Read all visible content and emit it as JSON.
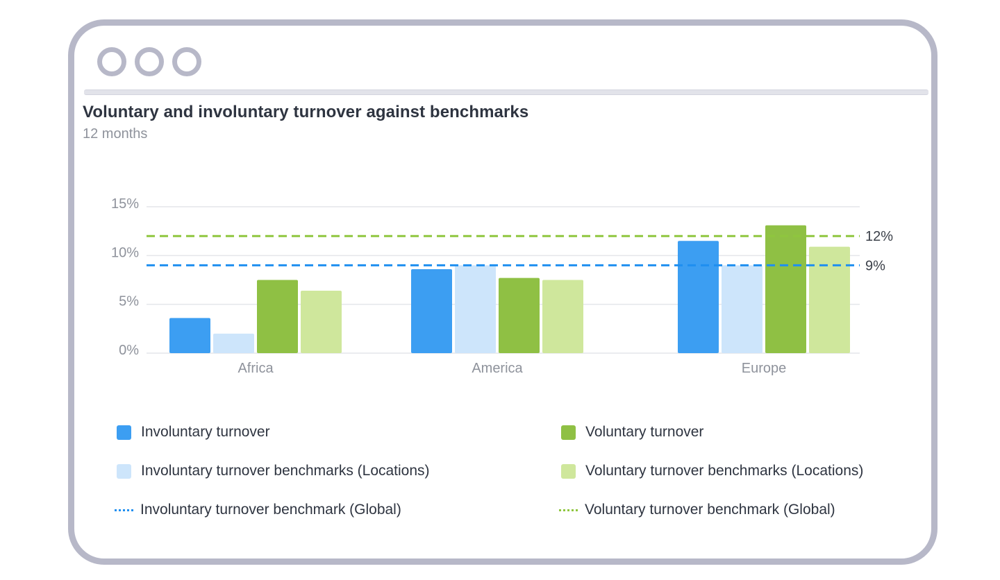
{
  "window": {
    "title": "Voluntary and involuntary turnover against benchmarks",
    "subtitle": "12 months"
  },
  "colors": {
    "involuntary": "#3c9ef2",
    "involuntary_bench": "#cde5fb",
    "voluntary": "#8fc044",
    "voluntary_bench": "#cfe79c",
    "involuntary_global": "#1f8ff0",
    "voluntary_global": "#8fc63f",
    "gridline": "#e4e6ea",
    "axis_text": "#8e929b"
  },
  "legend": [
    {
      "label": "Involuntary turnover",
      "color_key": "involuntary",
      "kind": "box"
    },
    {
      "label": "Voluntary turnover",
      "color_key": "voluntary",
      "kind": "box"
    },
    {
      "label": "Involuntary turnover benchmarks (Locations)",
      "color_key": "involuntary_bench",
      "kind": "box"
    },
    {
      "label": "Voluntary turnover benchmarks (Locations)",
      "color_key": "voluntary_bench",
      "kind": "box"
    },
    {
      "label": "Involuntary turnover benchmark (Global)",
      "color_key": "involuntary_global",
      "kind": "dash"
    },
    {
      "label": "Voluntary turnover benchmark (Global)",
      "color_key": "voluntary_global",
      "kind": "dash"
    }
  ],
  "chart_data": {
    "type": "bar",
    "title": "Voluntary and involuntary turnover against benchmarks",
    "subtitle": "12 months",
    "categories": [
      "Africa",
      "America",
      "Europe"
    ],
    "series": [
      {
        "name": "Involuntary turnover",
        "color_key": "involuntary",
        "values": [
          3.6,
          8.6,
          11.5
        ]
      },
      {
        "name": "Involuntary turnover benchmarks (Locations)",
        "color_key": "involuntary_bench",
        "values": [
          2.0,
          9.0,
          9.0
        ]
      },
      {
        "name": "Voluntary turnover",
        "color_key": "voluntary",
        "values": [
          7.5,
          7.7,
          13.1
        ]
      },
      {
        "name": "Voluntary turnover benchmarks (Locations)",
        "color_key": "voluntary_bench",
        "values": [
          6.4,
          7.5,
          10.9
        ]
      }
    ],
    "reference_lines": [
      {
        "name": "Voluntary turnover benchmark (Global)",
        "color_key": "voluntary_global",
        "value": 12,
        "label": "12%"
      },
      {
        "name": "Involuntary turnover benchmark (Global)",
        "color_key": "involuntary_global",
        "value": 9,
        "label": "9%"
      }
    ],
    "y_ticks": [
      {
        "value": 0,
        "label": "0%"
      },
      {
        "value": 5,
        "label": "5%"
      },
      {
        "value": 10,
        "label": "10%"
      },
      {
        "value": 15,
        "label": "15%"
      }
    ],
    "ylim": [
      0,
      15
    ],
    "grid": true,
    "legend_position": "bottom"
  }
}
